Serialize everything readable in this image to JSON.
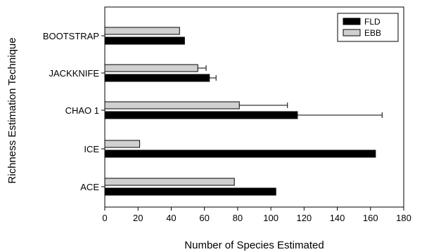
{
  "chart_data": {
    "type": "bar",
    "orientation": "horizontal",
    "categories": [
      "BOOTSTRAP",
      "JACKKNIFE",
      "CHAO 1",
      "ICE",
      "ACE"
    ],
    "series": [
      {
        "name": "EBB",
        "color": "#d0d0d0",
        "values": [
          45,
          56,
          81,
          21,
          78
        ],
        "error_plus": [
          null,
          5,
          29,
          null,
          null
        ]
      },
      {
        "name": "FLD",
        "color": "#000000",
        "values": [
          48,
          63,
          116,
          163,
          103
        ],
        "error_plus": [
          null,
          4,
          51,
          null,
          null
        ]
      }
    ],
    "xlabel": "Number of Species Estimated",
    "ylabel": "Richness Estimation Technique",
    "xlim": [
      0,
      180
    ],
    "xticks": [
      "0",
      "20",
      "40",
      "60",
      "80",
      "100",
      "120",
      "140",
      "160",
      "180"
    ],
    "legend": {
      "position": "top-right",
      "entries": [
        "FLD",
        "EBB"
      ]
    },
    "grid": false
  }
}
